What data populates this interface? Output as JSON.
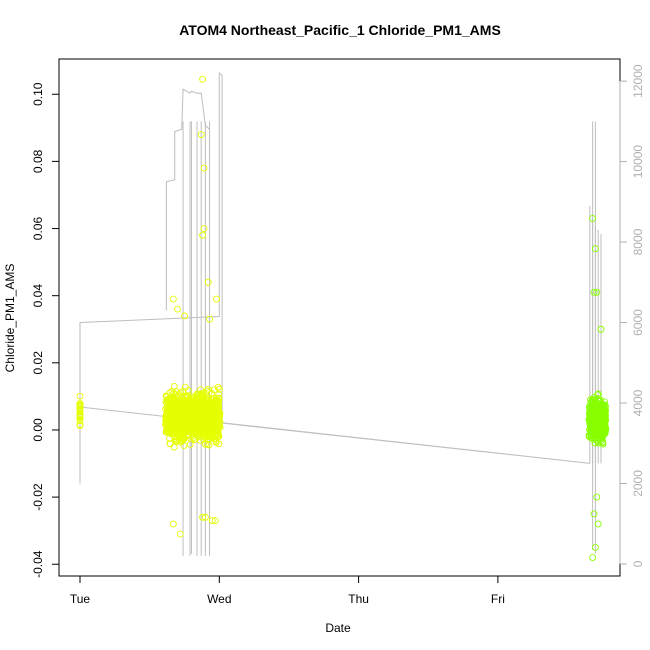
{
  "chart_data": {
    "type": "scatter",
    "title": "ATOM4 Northeast_Pacific_1 Chloride_PM1_AMS",
    "xlabel": "Date",
    "ylabel": "Chloride_PM1_AMS",
    "x_ticks": [
      "Tue",
      "Wed",
      "Thu",
      "Fri"
    ],
    "y_ticks": [
      "-0.04",
      "-0.02",
      "0.00",
      "0.02",
      "0.04",
      "0.06",
      "0.08",
      "0.10"
    ],
    "y_tick_values": [
      -0.04,
      -0.02,
      0.0,
      0.02,
      0.04,
      0.06,
      0.08,
      0.1
    ],
    "y_right_ticks": [
      "0",
      "2000",
      "4000",
      "6000",
      "8000",
      "10000",
      "12000"
    ],
    "y_right_tick_values": [
      0,
      2000,
      4000,
      6000,
      8000,
      10000,
      12000
    ],
    "xlim": [
      "Tue 00:00",
      "Fri 19:00"
    ],
    "ylim": [
      -0.0435,
      0.1105
    ],
    "y_right_lim": [
      -300,
      12550
    ],
    "grid": false,
    "colors": {
      "scatter_early": "#e6ff00",
      "scatter_late": "#88ff00",
      "line": "#bebebe",
      "right_axis": "#b0b0b0"
    },
    "series": [
      {
        "role": "points",
        "clusters": [
          {
            "day_start": 0.0,
            "day_end": 0.0,
            "y_center": 0.005,
            "y_spread": 0.004,
            "n": 25
          },
          {
            "day_start": 0.62,
            "day_end": 1.0,
            "y_center": 0.004,
            "y_spread": 0.006,
            "n": 1200
          },
          {
            "day_start": 3.66,
            "day_end": 3.77,
            "y_center": 0.003,
            "y_spread": 0.005,
            "n": 600
          }
        ],
        "outliers": [
          {
            "x": 0.88,
            "y": 0.1045
          },
          {
            "x": 0.87,
            "y": 0.088
          },
          {
            "x": 0.89,
            "y": 0.078
          },
          {
            "x": 0.89,
            "y": 0.06
          },
          {
            "x": 0.88,
            "y": 0.058
          },
          {
            "x": 0.92,
            "y": 0.044
          },
          {
            "x": 0.98,
            "y": 0.039
          },
          {
            "x": 0.67,
            "y": 0.039
          },
          {
            "x": 0.7,
            "y": 0.036
          },
          {
            "x": 0.93,
            "y": 0.033
          },
          {
            "x": 0.75,
            "y": 0.034
          },
          {
            "x": 0.67,
            "y": -0.028
          },
          {
            "x": 0.72,
            "y": -0.031
          },
          {
            "x": 0.88,
            "y": -0.026
          },
          {
            "x": 0.95,
            "y": -0.027
          },
          {
            "x": 0.97,
            "y": -0.027
          },
          {
            "x": 0.9,
            "y": -0.026
          },
          {
            "x": 3.68,
            "y": 0.063
          },
          {
            "x": 3.7,
            "y": 0.054
          },
          {
            "x": 3.69,
            "y": 0.041
          },
          {
            "x": 3.71,
            "y": 0.041
          },
          {
            "x": 3.74,
            "y": 0.03
          },
          {
            "x": 3.7,
            "y": -0.035
          },
          {
            "x": 3.68,
            "y": -0.038
          },
          {
            "x": 3.72,
            "y": -0.028
          },
          {
            "x": 3.69,
            "y": -0.025
          },
          {
            "x": 3.71,
            "y": -0.02
          }
        ]
      },
      {
        "role": "line_right_axis",
        "points": [
          [
            0.0,
            2000
          ],
          [
            0.0,
            6000
          ],
          [
            1.0,
            6150
          ],
          [
            1.0,
            12200
          ],
          [
            1.02,
            12150
          ],
          [
            1.02,
            3500
          ],
          [
            3.66,
            2500
          ],
          [
            0.0,
            3900
          ]
        ],
        "spikes": [
          {
            "x": 0.62,
            "top": 6300
          },
          {
            "x": 0.62,
            "top": 9500
          },
          {
            "x": 0.68,
            "top": 9550
          },
          {
            "x": 0.68,
            "top": 10750
          },
          {
            "x": 0.73,
            "top": 10800
          },
          {
            "x": 0.74,
            "top": 11800
          },
          {
            "x": 0.79,
            "top": 11700
          },
          {
            "x": 0.8,
            "top": 11750
          },
          {
            "x": 0.84,
            "top": 11700
          },
          {
            "x": 0.87,
            "top": 11700
          },
          {
            "x": 0.9,
            "top": 10900
          },
          {
            "x": 0.93,
            "top": 10800
          },
          {
            "x": 3.66,
            "top": 8900
          },
          {
            "x": 3.68,
            "top": 8700
          },
          {
            "x": 3.7,
            "top": 8400
          },
          {
            "x": 3.72,
            "top": 8300
          },
          {
            "x": 3.74,
            "top": 8200
          }
        ],
        "dips": [
          {
            "x": 0.74,
            "bottom": 200
          },
          {
            "x": 0.79,
            "bottom": 200
          },
          {
            "x": 0.8,
            "bottom": 250
          },
          {
            "x": 0.84,
            "bottom": 200
          },
          {
            "x": 0.87,
            "bottom": 200
          },
          {
            "x": 0.9,
            "bottom": 200
          },
          {
            "x": 0.93,
            "bottom": 200
          },
          {
            "x": 3.68,
            "bottom": 350
          },
          {
            "x": 3.7,
            "bottom": 250
          }
        ]
      }
    ]
  }
}
